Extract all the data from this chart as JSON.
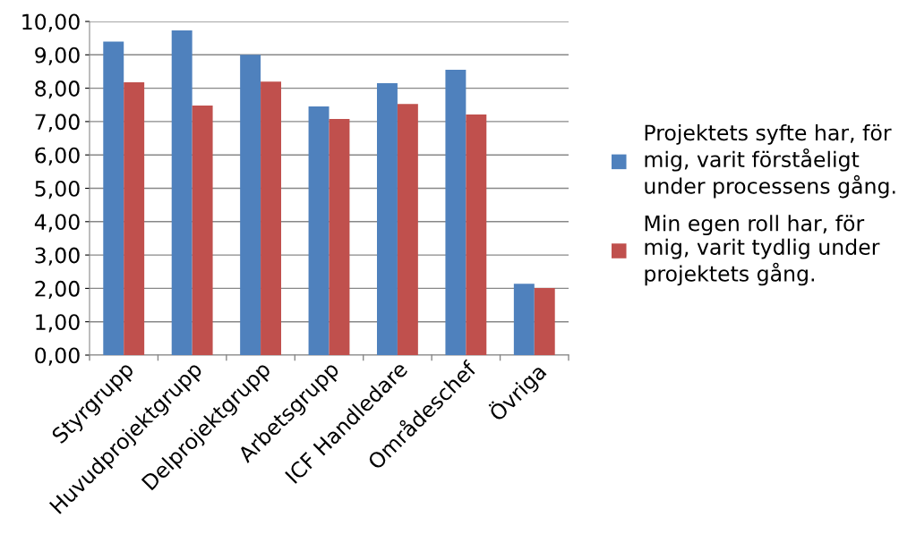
{
  "chart_data": {
    "type": "bar",
    "categories": [
      "Styrgrupp",
      "Huvudprojektgrupp",
      "Delprojektgrupp",
      "Arbetsgrupp",
      "ICF Handledare",
      "Områdeschef",
      "Övriga"
    ],
    "series": [
      {
        "name": "Projektets syfte har, för mig, varit förståeligt under processens gång.",
        "color": "#4f81bd",
        "values": [
          9.4,
          9.73,
          9.0,
          7.45,
          8.15,
          8.55,
          2.14
        ]
      },
      {
        "name": "Min egen roll har, för mig, varit tydlig under projektets gång.",
        "color": "#c0504d",
        "values": [
          8.18,
          7.48,
          8.2,
          7.08,
          7.53,
          7.21,
          2.01
        ]
      }
    ],
    "ylim": [
      0,
      10
    ],
    "yticks": [
      {
        "value": 0,
        "label": "0,00"
      },
      {
        "value": 1,
        "label": "1,00"
      },
      {
        "value": 2,
        "label": "2,00"
      },
      {
        "value": 3,
        "label": "3,00"
      },
      {
        "value": 4,
        "label": "4,00"
      },
      {
        "value": 5,
        "label": "5,00"
      },
      {
        "value": 6,
        "label": "6,00"
      },
      {
        "value": 7,
        "label": "7,00"
      },
      {
        "value": 8,
        "label": "8,00"
      },
      {
        "value": 9,
        "label": "9,00"
      },
      {
        "value": 10,
        "label": "10,00"
      }
    ],
    "grid": "y",
    "legend": "right"
  }
}
